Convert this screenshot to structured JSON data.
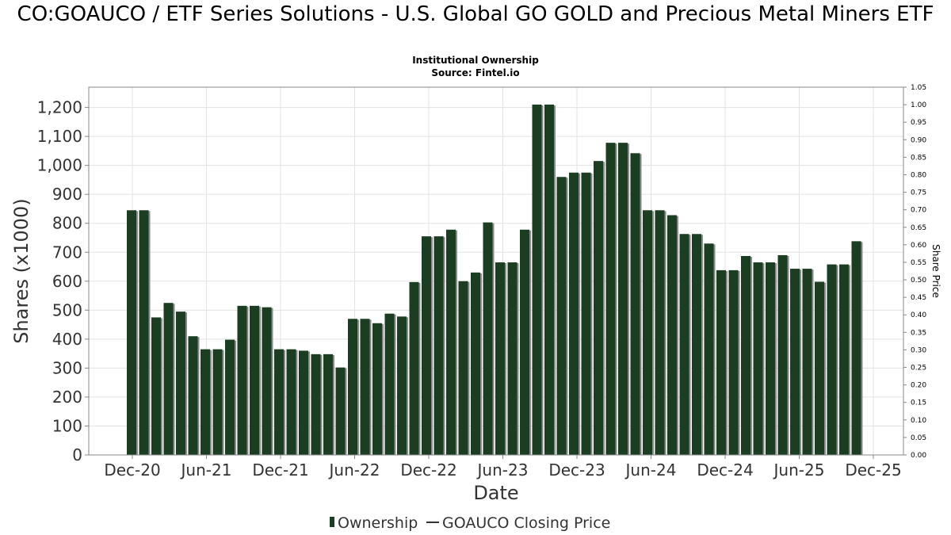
{
  "title": "CO:GOAUCO / ETF Series Solutions - U.S. Global GO GOLD and Precious Metal Miners ETF",
  "subtitle_line1": "Institutional Ownership",
  "subtitle_line2": "Source: Fintel.io",
  "colors": {
    "bar": "#1b3d22",
    "bar_shadow": "#8a8a8a",
    "grid": "#e3e3e3",
    "axis": "#888888",
    "text": "#333333"
  },
  "chart_data": {
    "type": "bar",
    "title": "CO:GOAUCO / ETF Series Solutions - U.S. Global GO GOLD and Precious Metal Miners ETF",
    "xlabel": "Date",
    "ylabel": "Shares (x1000)",
    "y2label": "Share Price",
    "ylim": [
      0,
      1270
    ],
    "y2lim": [
      0,
      1.05
    ],
    "yticks": [
      0,
      100,
      200,
      300,
      400,
      500,
      600,
      700,
      800,
      900,
      1000,
      1100,
      1200
    ],
    "ytick_labels": [
      "0",
      "100",
      "200",
      "300",
      "400",
      "500",
      "600",
      "700",
      "800",
      "900",
      "1,000",
      "1,100",
      "1,200"
    ],
    "y2ticks": [
      "0.00",
      "0.05",
      "0.10",
      "0.15",
      "0.20",
      "0.25",
      "0.30",
      "0.35",
      "0.40",
      "0.45",
      "0.50",
      "0.55",
      "0.60",
      "0.65",
      "0.70",
      "0.75",
      "0.80",
      "0.85",
      "0.90",
      "0.95",
      "1.00",
      "1.05"
    ],
    "xtick_labels": [
      "Dec-20",
      "Jun-21",
      "Dec-21",
      "Jun-22",
      "Dec-22",
      "Jun-23",
      "Dec-23",
      "Jun-24",
      "Dec-24",
      "Jun-25",
      "Dec-25"
    ],
    "series": [
      {
        "name": "Ownership",
        "values": [
          845,
          845,
          475,
          525,
          495,
          410,
          365,
          365,
          398,
          515,
          515,
          510,
          365,
          365,
          360,
          348,
          348,
          302,
          470,
          470,
          455,
          488,
          478,
          597,
          755,
          755,
          778,
          600,
          630,
          803,
          665,
          665,
          778,
          1210,
          1210,
          960,
          975,
          975,
          1015,
          1078,
          1078,
          1042,
          845,
          845,
          828,
          763,
          763,
          730,
          638,
          638,
          687,
          665,
          665,
          690,
          643,
          643,
          598,
          658,
          658,
          738
        ]
      },
      {
        "name": "GOAUCO Closing Price",
        "values": []
      }
    ]
  },
  "legend": {
    "ownership_label": "Ownership",
    "price_label": "GOAUCO Closing Price"
  }
}
